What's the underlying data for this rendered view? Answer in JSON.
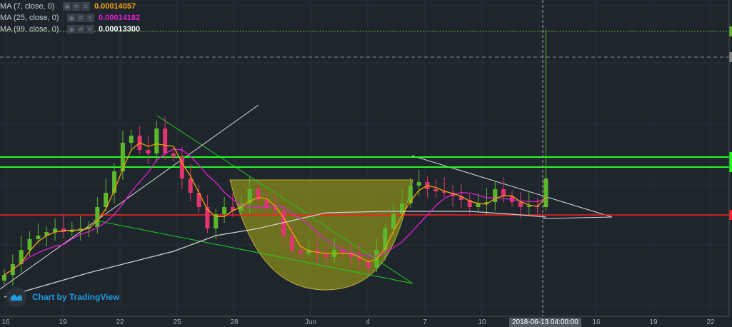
{
  "legend": [
    {
      "name": "MA (7, close, 0)",
      "value": "0.00014057",
      "color": "#f0a30a"
    },
    {
      "name": "MA (25, close, 0)",
      "value": "0.00014182",
      "color": "#e020d0"
    },
    {
      "name": "MA (99, close, 0)",
      "value": "0.00013300",
      "color": "#ffffff"
    }
  ],
  "legend_icons": [
    "eye-icon",
    "gear-icon",
    "close-icon"
  ],
  "watermark": "Chart by TradingView",
  "x_axis": [
    "16",
    "19",
    "22",
    "25",
    "28",
    "Jun",
    "4",
    "7",
    "10",
    "16",
    "19",
    "22"
  ],
  "crosshair_label": "2018-06-13 04:00:00",
  "colors": {
    "background": "#1f252d",
    "up": "#5cb82a",
    "down": "#e0356e",
    "support": "#ff2020",
    "resistance": "#20ff20"
  },
  "chart_data": {
    "type": "candlestick",
    "closes": [
      9.35e-05,
      0.000101,
      0.000111,
      0.0001185,
      0.000121,
      0.0001235,
      0.000126,
      0.0001235,
      0.000125,
      0.000126,
      0.000127,
      0.000141,
      0.000151,
      0.000166,
      0.000186,
      0.000191,
      0.000181,
      0.0001785,
      0.000196,
      0.0001785,
      0.000176,
      0.000161,
      0.000151,
      0.000141,
      0.000126,
      0.000136,
      0.000141,
      0.0001385,
      0.0001435,
      0.0001535,
      0.000146,
      0.000141,
      0.0001385,
      0.000121,
      0.000111,
      0.0001085,
      0.000111,
      0.0001085,
      0.000106,
      0.000111,
      0.0001085,
      0.000106,
      0.0001035,
      9.85e-05,
      0.000111,
      0.000126,
      0.000136,
      0.0001435,
      0.000156,
      0.0001585,
      0.0001535,
      0.000152,
      0.000151,
      0.0001485,
      0.000146,
      0.000141,
      0.0001435,
      0.0001445,
      0.0001535,
      0.0001485,
      0.0001445,
      0.000141,
      0.000142,
      0.000141,
      0.000161
    ],
    "last_high": 0.000265,
    "ma99": [
      [
        0,
        7.8e-05
      ],
      [
        10,
        9.5e-05
      ],
      [
        20,
        0.00011
      ],
      [
        25,
        0.000121
      ],
      [
        30,
        0.000126
      ],
      [
        38,
        0.000137
      ],
      [
        45,
        0.000138
      ],
      [
        50,
        0.000138
      ],
      [
        55,
        0.000138
      ],
      [
        60,
        0.000136
      ],
      [
        64,
        0.000134
      ]
    ],
    "horizontal_levels": [
      0.000176,
      0.000169,
      0.0001355,
      0.000264,
      0.000246
    ],
    "legend": [
      "MA (7, close, 0)",
      "MA (25, close, 0)",
      "MA (99, close, 0)"
    ]
  }
}
